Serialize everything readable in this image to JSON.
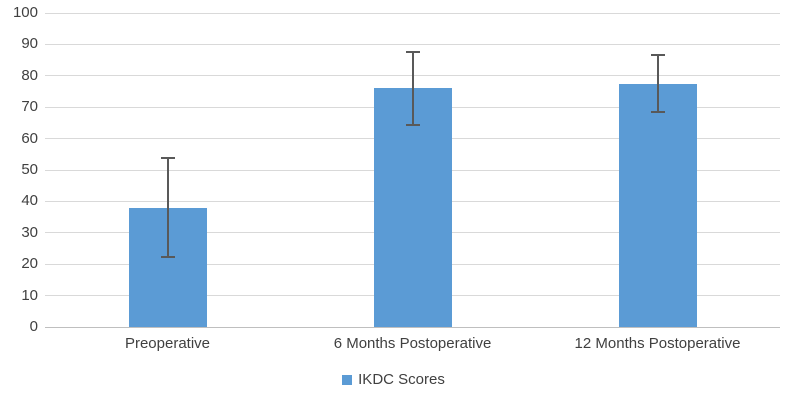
{
  "chart_data": {
    "type": "bar",
    "title": "",
    "categories": [
      "Preoperative",
      "6 Months Postoperative",
      "12 Months Postoperative"
    ],
    "series": [
      {
        "name": "IKDC Scores",
        "values": [
          38,
          76,
          77.5
        ],
        "error_low": [
          22,
          64,
          68
        ],
        "error_high": [
          54,
          88,
          87
        ]
      }
    ],
    "ylim": [
      0,
      100
    ],
    "ytick_step": 10,
    "ytick_labels": [
      "0",
      "10",
      "20",
      "30",
      "40",
      "50",
      "60",
      "70",
      "80",
      "90",
      "100"
    ],
    "grid": true,
    "legend_position": "bottom",
    "colors": {
      "bar": "#5B9BD5",
      "gridline": "#D9D9D9",
      "axis_line": "#BFBFBF",
      "error_bar": "#595959",
      "text": "#404040"
    }
  }
}
